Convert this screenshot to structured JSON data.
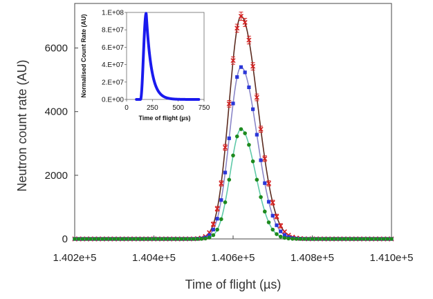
{
  "chart_data": [
    {
      "type": "scatter",
      "title": "",
      "xlabel": "Time of flight (µs)",
      "ylabel": "Neutron count rate (AU)",
      "xlim": [
        140200,
        141000
      ],
      "ylim": [
        0,
        7400
      ],
      "x_ticks": [
        140200,
        140400,
        140600,
        140800,
        141000
      ],
      "x_tick_labels": [
        "1.402e+5",
        "1.404e+5",
        "1.406e+5",
        "1.408e+5",
        "1.410e+5"
      ],
      "y_ticks": [
        0,
        2000,
        4000,
        6000
      ],
      "y_tick_labels": [
        "0",
        "2000",
        "4000",
        "6000"
      ],
      "grid": false,
      "legend": "none",
      "series": [
        {
          "color": "#d42020",
          "marker": "x-errorbar",
          "fit_color": "#5a2a1e",
          "peak_x": 140620,
          "peak": 7000,
          "sigma_left": 30,
          "sigma_right": 42
        },
        {
          "color": "#2a36d8",
          "marker": "square",
          "fit_color": "#8a86c8",
          "peak_x": 140620,
          "peak": 5400,
          "sigma_left": 29,
          "sigma_right": 40
        },
        {
          "color": "#1e8a1e",
          "marker": "circle",
          "fit_color": "#5ec9a8",
          "peak_x": 140620,
          "peak": 3450,
          "sigma_left": 27,
          "sigma_right": 36
        }
      ],
      "x_sample_step": 10
    },
    {
      "type": "line",
      "title": "",
      "xlabel": "Time of flight (µs)",
      "ylabel": "Normalised Count Rate (AU)",
      "xlim": [
        0,
        750
      ],
      "ylim": [
        0,
        100000000
      ],
      "x_ticks": [
        0,
        250,
        500,
        750
      ],
      "x_tick_labels": [
        "0",
        "250",
        "500",
        "750"
      ],
      "y_ticks": [
        0,
        20000000,
        40000000,
        60000000,
        80000000,
        100000000
      ],
      "y_tick_labels": [
        "0.E+00",
        "2.E+07",
        "4.E+07",
        "6.E+07",
        "8.E+07",
        "1.E+08"
      ],
      "grid": false,
      "series": [
        {
          "color": "#1a1aee",
          "onset": 135,
          "peak_x": 190,
          "peak": 99000000,
          "rise_tau": 18,
          "decay_tau": 50,
          "x_end": 700
        }
      ]
    }
  ]
}
